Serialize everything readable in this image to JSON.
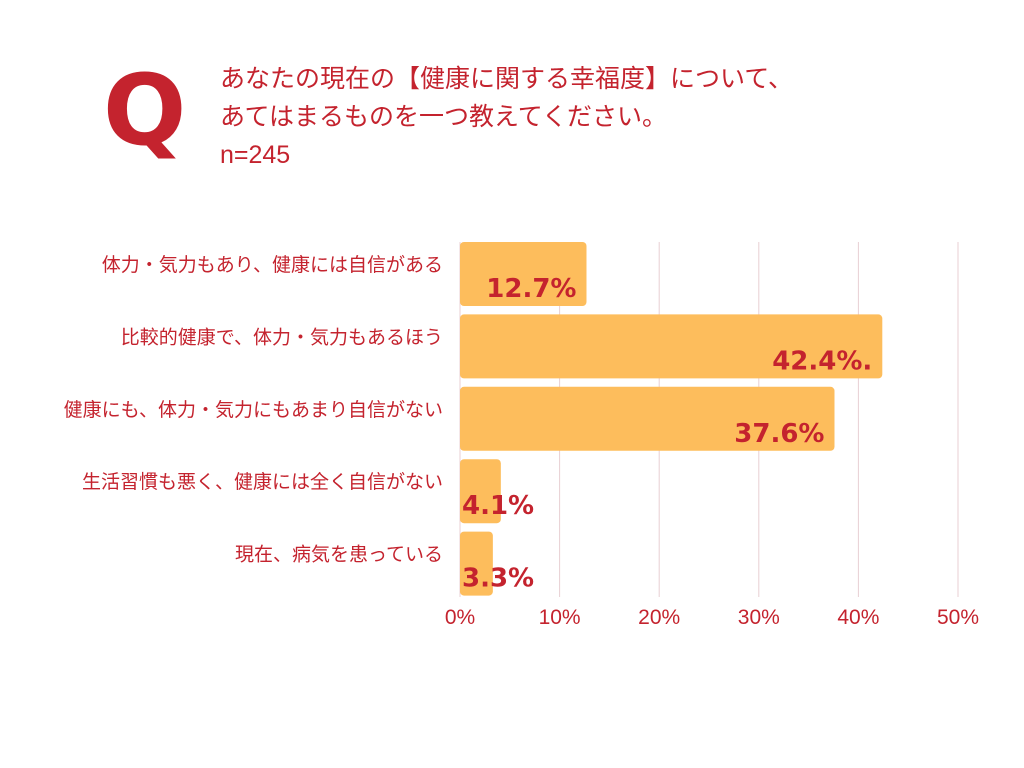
{
  "header": {
    "q_mark": "Q",
    "question_line1": "あなたの現在の【健康に関する幸福度】について、",
    "question_line2": "あてはまるものを一つ教えてください。",
    "sample_size": "n=245"
  },
  "colors": {
    "accent": "#c4232e",
    "bar": "#fdbd5c",
    "grid": "#e8cfd3"
  },
  "chart_data": {
    "type": "bar",
    "orientation": "horizontal",
    "title": "",
    "xlabel": "",
    "ylabel": "",
    "categories": [
      "体力・気力もあり、健康には自信がある",
      "比較的健康で、体力・気力もあるほう",
      "健康にも、体力・気力にもあまり自信がない",
      "生活習慣も悪く、健康には全く自信がない",
      "現在、病気を患っている"
    ],
    "values": [
      12.7,
      42.4,
      37.6,
      4.1,
      3.3
    ],
    "value_labels": [
      "12.7%",
      "42.4%.",
      "37.6%",
      "4.1%",
      "3.3%"
    ],
    "xlim": [
      0,
      50
    ],
    "ticks": [
      0,
      10,
      20,
      30,
      40,
      50
    ],
    "tick_labels": [
      "0%",
      "10%",
      "20%",
      "30%",
      "40%",
      "50%"
    ],
    "grid": true,
    "legend": "none"
  }
}
